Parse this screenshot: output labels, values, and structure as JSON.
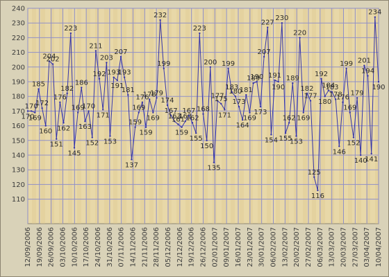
{
  "chart_data": {
    "type": "line",
    "title": "",
    "xlabel": "",
    "ylabel": "",
    "ylim": [
      105,
      240
    ],
    "yticks": [
      110,
      120,
      130,
      140,
      150,
      160,
      170,
      180,
      190,
      200,
      210,
      220,
      230,
      240
    ],
    "x_tick_labels": [
      "12/09/2006",
      "19/09/2006",
      "26/09/2006",
      "03/10/2006",
      "10/10/2006",
      "17/10/2006",
      "24/10/2006",
      "31/10/2006",
      "07/11/2006",
      "14/11/2006",
      "21/11/2006",
      "28/11/2006",
      "05/12/2006",
      "12/12/2006",
      "19/12/2006",
      "26/12/2006",
      "02/01/2007",
      "09/01/2007",
      "16/01/2007",
      "23/01/2007",
      "30/01/2007",
      "06/02/2007",
      "13/02/2007",
      "20/02/2007",
      "27/02/2007",
      "06/03/2007",
      "13/03/2007",
      "20/03/2007",
      "27/03/2007",
      "03/04/2007",
      "10/04/2007"
    ],
    "series": [
      {
        "name": "",
        "color": "#3333aa",
        "values": [
          170,
          170,
          169,
          185,
          172,
          160,
          204,
          202,
          151,
          176,
          162,
          182,
          223,
          145,
          169,
          186,
          163,
          170,
          152,
          211,
          192,
          171,
          203,
          153,
          193,
          191,
          207,
          193,
          181,
          137,
          159,
          169,
          176,
          159,
          178,
          169,
          179,
          232,
          199,
          174,
          167,
          163,
          161,
          159,
          163,
          167,
          162,
          155,
          223,
          168,
          150,
          200,
          135,
          177,
          175,
          171,
          199,
          183,
          180,
          173,
          164,
          181,
          169,
          189,
          190,
          173,
          207,
          227,
          154,
          191,
          190,
          230,
          155,
          162,
          189,
          153,
          220,
          169,
          182,
          177,
          125,
          116,
          192,
          180,
          184,
          183,
          178,
          146,
          176,
          199,
          169,
          152,
          179,
          140,
          201,
          194,
          141,
          234,
          190
        ]
      }
    ]
  }
}
